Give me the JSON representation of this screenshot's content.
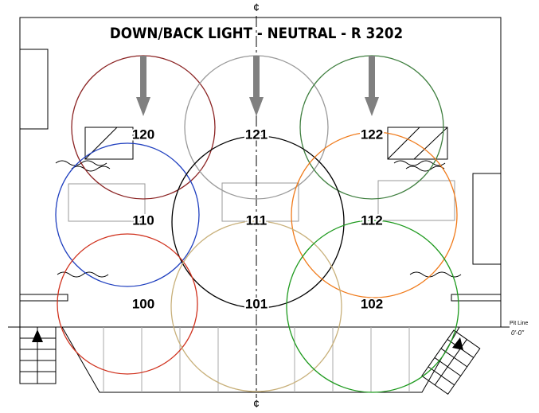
{
  "title": "DOWN/BACK LIGHT - NEUTRAL - R 3202",
  "centerline": [
    "¢",
    "¢"
  ],
  "pit_line": {
    "label": "Pit Line",
    "elevation": "0'-0\""
  },
  "lights": [
    {
      "label": "120",
      "color": "#8b2323"
    },
    {
      "label": "121",
      "color": "#9a9a9a"
    },
    {
      "label": "122",
      "color": "#3f7f3f"
    },
    {
      "label": "110",
      "color": "#1f3fbf"
    },
    {
      "label": "111",
      "color": "#000000"
    },
    {
      "label": "112",
      "color": "#f07a1a"
    },
    {
      "label": "100",
      "color": "#d0321e"
    },
    {
      "label": "101",
      "color": "#c8b07a"
    },
    {
      "label": "102",
      "color": "#1e9a1e"
    }
  ]
}
